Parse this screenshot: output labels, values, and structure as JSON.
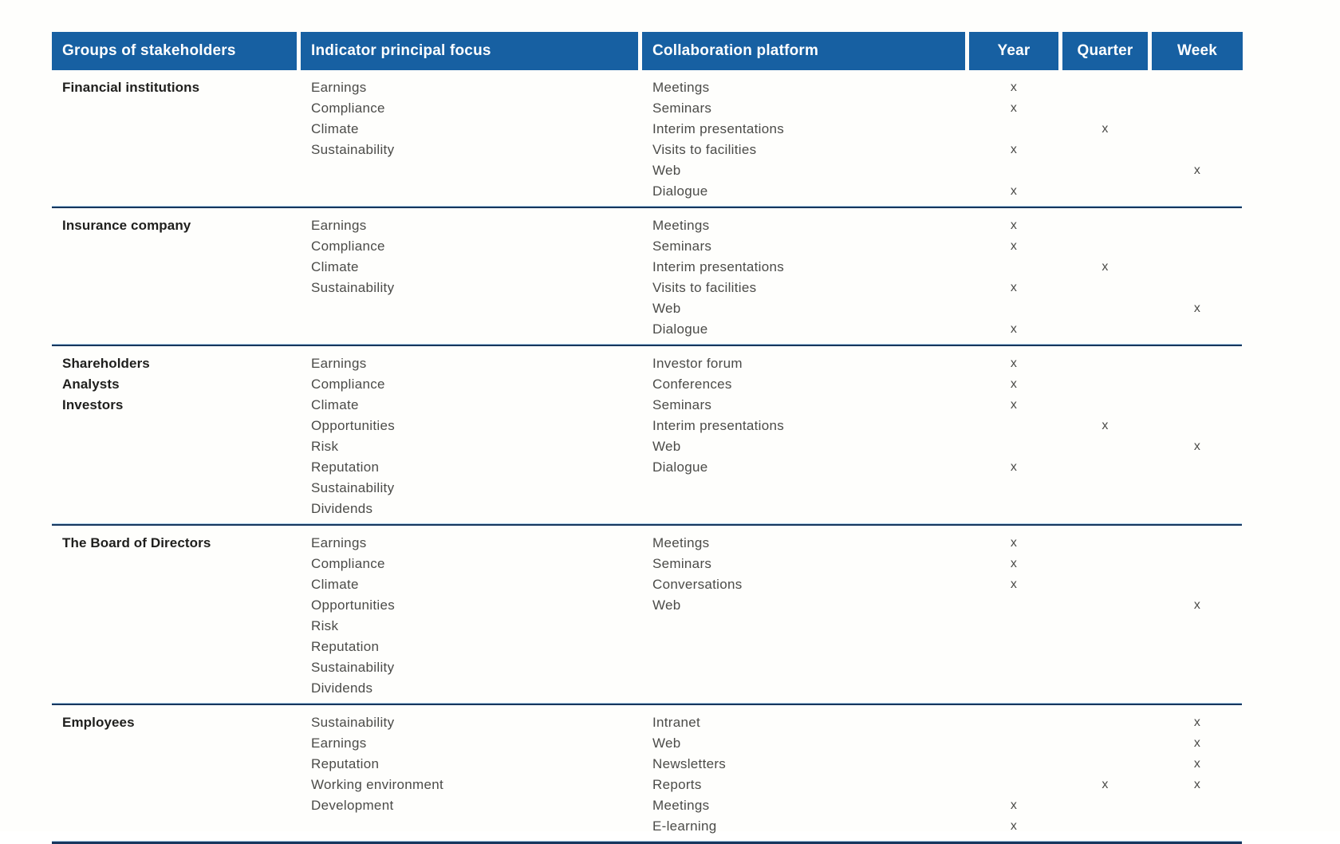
{
  "colors": {
    "header_bg": "#1760A2",
    "header_text": "#FFFFFF",
    "divider_dark": "#17375E",
    "divider_light": "#A9CBE5",
    "body_text": "#4B4B48",
    "group_text": "#1F1F1D"
  },
  "table": {
    "headers": [
      "Groups of stakeholders",
      "Indicator principal focus",
      "Collaboration platform",
      "Year",
      "Quarter",
      "Week"
    ],
    "groups": [
      {
        "stakeholders": [
          "Financial institutions"
        ],
        "indicators": [
          "Earnings",
          "Compliance",
          "Climate",
          "Sustainability"
        ],
        "platforms": [
          {
            "name": "Meetings",
            "year": "x",
            "quarter": "",
            "week": ""
          },
          {
            "name": "Seminars",
            "year": "x",
            "quarter": "",
            "week": ""
          },
          {
            "name": "Interim presentations",
            "year": "",
            "quarter": "x",
            "week": ""
          },
          {
            "name": "Visits to facilities",
            "year": "x",
            "quarter": "",
            "week": ""
          },
          {
            "name": "Web",
            "year": "",
            "quarter": "",
            "week": "x"
          },
          {
            "name": "Dialogue",
            "year": "x",
            "quarter": "",
            "week": ""
          }
        ]
      },
      {
        "stakeholders": [
          "Insurance company"
        ],
        "indicators": [
          "Earnings",
          "Compliance",
          "Climate",
          "Sustainability"
        ],
        "platforms": [
          {
            "name": "Meetings",
            "year": "x",
            "quarter": "",
            "week": ""
          },
          {
            "name": "Seminars",
            "year": "x",
            "quarter": "",
            "week": ""
          },
          {
            "name": "Interim presentations",
            "year": "",
            "quarter": "x",
            "week": ""
          },
          {
            "name": "Visits to facilities",
            "year": "x",
            "quarter": "",
            "week": ""
          },
          {
            "name": "Web",
            "year": "",
            "quarter": "",
            "week": "x"
          },
          {
            "name": "Dialogue",
            "year": "x",
            "quarter": "",
            "week": ""
          }
        ]
      },
      {
        "stakeholders": [
          "Shareholders",
          "Analysts",
          "Investors"
        ],
        "indicators": [
          "Earnings",
          "Compliance",
          "Climate",
          "Opportunities",
          "Risk",
          "Reputation",
          "Sustainability",
          "Dividends"
        ],
        "platforms": [
          {
            "name": "Investor forum",
            "year": "x",
            "quarter": "",
            "week": ""
          },
          {
            "name": "Conferences",
            "year": "x",
            "quarter": "",
            "week": ""
          },
          {
            "name": "Seminars",
            "year": "x",
            "quarter": "",
            "week": ""
          },
          {
            "name": "Interim presentations",
            "year": "",
            "quarter": "x",
            "week": ""
          },
          {
            "name": "Web",
            "year": "",
            "quarter": "",
            "week": "x"
          },
          {
            "name": "Dialogue",
            "year": "x",
            "quarter": "",
            "week": ""
          }
        ]
      },
      {
        "stakeholders": [
          "The Board of Directors"
        ],
        "indicators": [
          "Earnings",
          "Compliance",
          "Climate",
          "Opportunities",
          "Risk",
          "Reputation",
          "Sustainability",
          "Dividends"
        ],
        "platforms": [
          {
            "name": "Meetings",
            "year": "x",
            "quarter": "",
            "week": ""
          },
          {
            "name": "Seminars",
            "year": "x",
            "quarter": "",
            "week": ""
          },
          {
            "name": "Conversations",
            "year": "x",
            "quarter": "",
            "week": ""
          },
          {
            "name": "Web",
            "year": "",
            "quarter": "",
            "week": "x"
          }
        ]
      },
      {
        "stakeholders": [
          "Employees"
        ],
        "indicators": [
          "Sustainability",
          "Earnings",
          "Reputation",
          "Working environment",
          "Development"
        ],
        "platforms": [
          {
            "name": "Intranet",
            "year": "",
            "quarter": "",
            "week": "x"
          },
          {
            "name": "Web",
            "year": "",
            "quarter": "",
            "week": "x"
          },
          {
            "name": "Newsletters",
            "year": "",
            "quarter": "",
            "week": "x"
          },
          {
            "name": "Reports",
            "year": "",
            "quarter": "x",
            "week": "x"
          },
          {
            "name": "Meetings",
            "year": "x",
            "quarter": "",
            "week": ""
          },
          {
            "name": "E-learning",
            "year": "x",
            "quarter": "",
            "week": ""
          }
        ]
      }
    ]
  }
}
